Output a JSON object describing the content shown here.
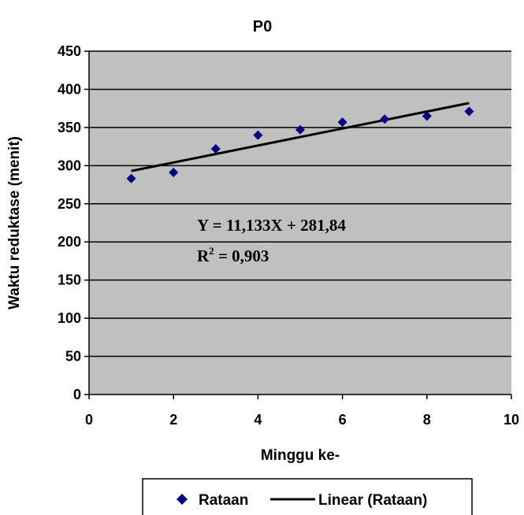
{
  "chart_data": {
    "type": "scatter",
    "title": "P0",
    "xlabel": "Minggu ke-",
    "ylabel": "Waktu reduktase (menit)",
    "xlim": [
      0,
      10
    ],
    "ylim": [
      0,
      450
    ],
    "xticks": [
      0,
      2,
      4,
      6,
      8,
      10
    ],
    "yticks": [
      0,
      50,
      100,
      150,
      200,
      250,
      300,
      350,
      400,
      450
    ],
    "grid": "horizontal",
    "background": "#c0c0c0",
    "series": [
      {
        "name": "Rataan",
        "marker": "diamond",
        "color": "#000080",
        "x": [
          1,
          2,
          3,
          4,
          5,
          6,
          7,
          8,
          9
        ],
        "y": [
          283,
          291,
          322,
          340,
          347,
          357,
          361,
          365,
          371
        ]
      }
    ],
    "trendline": {
      "name": "Linear (Rataan)",
      "color": "#000000",
      "slope": 11.133,
      "intercept": 281.84,
      "x_range": [
        1,
        9
      ]
    },
    "annotations": {
      "equation": "Y = 11,133X + 281,84",
      "r2_prefix": "R",
      "r2_sup": "2",
      "r2_value": " = 0,903"
    },
    "legend_position": "bottom"
  }
}
